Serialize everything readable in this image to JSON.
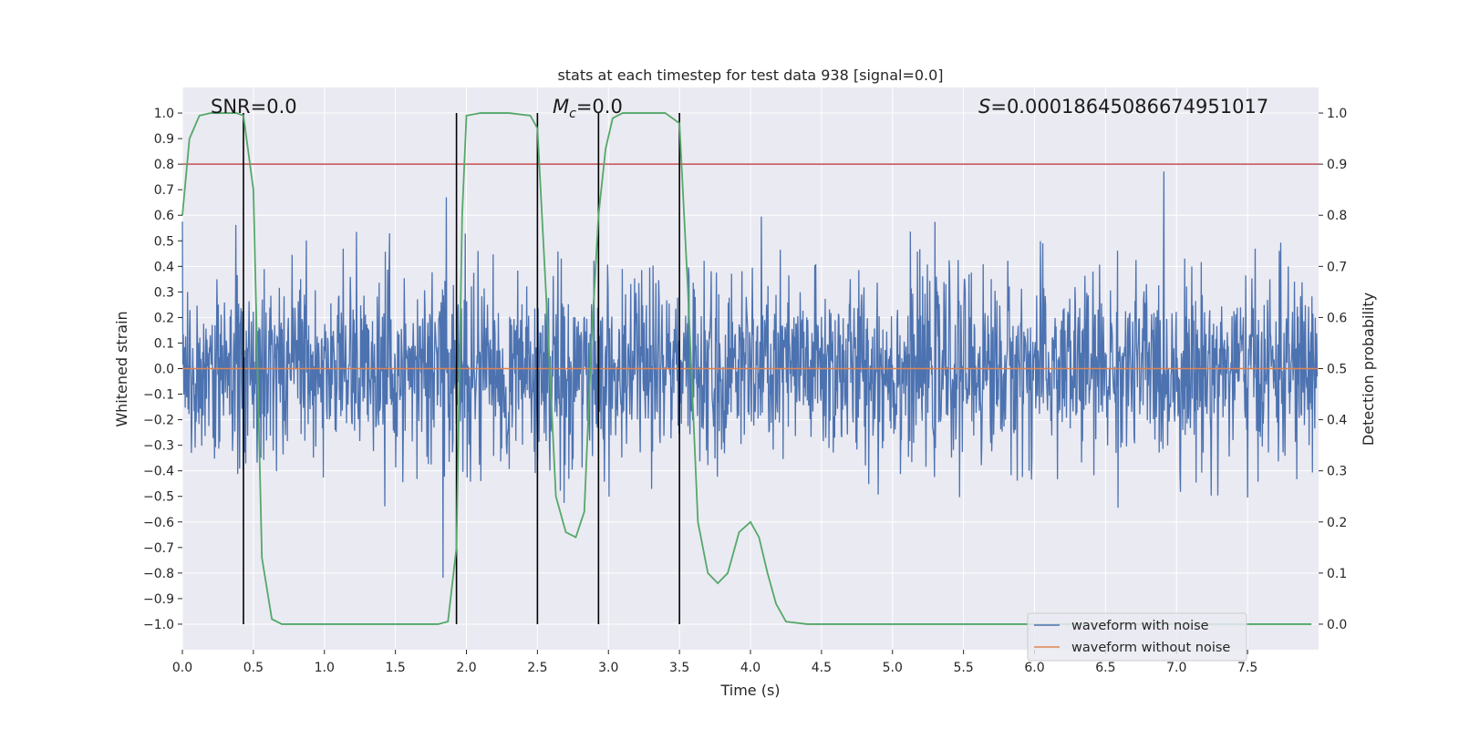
{
  "chart_data": {
    "type": "line",
    "title": "stats at each timestep for test data 938 [signal=0.0]",
    "xlabel": "Time (s)",
    "ylabel": "Whitened strain",
    "y2label": "Detection probability",
    "xlim": [
      0.0,
      8.0
    ],
    "ylim": [
      -1.1,
      1.1
    ],
    "y2lim": [
      -0.05,
      1.05
    ],
    "xticks": [
      "0.0",
      "0.5",
      "1.0",
      "1.5",
      "2.0",
      "2.5",
      "3.0",
      "3.5",
      "4.0",
      "4.5",
      "5.0",
      "5.5",
      "6.0",
      "6.5",
      "7.0",
      "7.5"
    ],
    "yticks": [
      "1.0",
      "0.9",
      "0.8",
      "0.7",
      "0.6",
      "0.5",
      "0.4",
      "0.3",
      "0.2",
      "0.1",
      "0.0",
      "-0.1",
      "-0.2",
      "-0.3",
      "-0.4",
      "-0.5",
      "-0.6",
      "-0.7",
      "-0.8",
      "-0.9",
      "-1.0"
    ],
    "y2ticks": [
      "1.0",
      "0.9",
      "0.8",
      "0.7",
      "0.6",
      "0.5",
      "0.4",
      "0.3",
      "0.2",
      "0.1",
      "0.0"
    ],
    "grid": true,
    "legend_placement": "lower-right",
    "annotations": {
      "snr": "SNR=0.0",
      "mc": "M",
      "mc_sub": "c",
      "mc_value": "=0.0",
      "s_symbol": "S",
      "s_value": "=0.00018645086674951017"
    },
    "threshold": {
      "y2": 0.9,
      "color": "#c44e52"
    },
    "vertical_lines_x": [
      0.43,
      1.93,
      2.5,
      2.93,
      3.5
    ],
    "series": [
      {
        "name": "waveform with noise",
        "color": "#4c72b0",
        "kind": "noise",
        "typical_amplitude": 0.4,
        "peak_amplitude": 1.0
      },
      {
        "name": "waveform without noise",
        "color": "#dd8452",
        "kind": "flat",
        "value": 0.0
      },
      {
        "color": "#55a868",
        "axis": "right",
        "x": [
          0.0,
          0.05,
          0.12,
          0.2,
          0.3,
          0.38,
          0.43,
          0.5,
          0.56,
          0.63,
          0.7,
          1.0,
          1.5,
          1.8,
          1.87,
          1.93,
          1.97,
          2.0,
          2.1,
          2.3,
          2.45,
          2.5,
          2.56,
          2.63,
          2.7,
          2.77,
          2.83,
          2.88,
          2.93,
          2.98,
          3.03,
          3.1,
          3.25,
          3.4,
          3.5,
          3.56,
          3.63,
          3.7,
          3.77,
          3.84,
          3.92,
          4.0,
          4.06,
          4.12,
          4.18,
          4.25,
          4.4,
          5.0,
          6.0,
          7.0,
          7.95
        ],
        "values": [
          0.8,
          0.95,
          0.995,
          1.0,
          1.0,
          1.0,
          0.995,
          0.85,
          0.13,
          0.01,
          0.0,
          0.0,
          0.0,
          0.0,
          0.005,
          0.15,
          0.8,
          0.995,
          1.0,
          1.0,
          0.995,
          0.97,
          0.65,
          0.25,
          0.18,
          0.17,
          0.22,
          0.55,
          0.8,
          0.93,
          0.99,
          1.0,
          1.0,
          1.0,
          0.98,
          0.65,
          0.2,
          0.1,
          0.08,
          0.1,
          0.18,
          0.2,
          0.17,
          0.1,
          0.04,
          0.005,
          0.0,
          0.0,
          0.0,
          0.0,
          0.0
        ]
      }
    ]
  }
}
